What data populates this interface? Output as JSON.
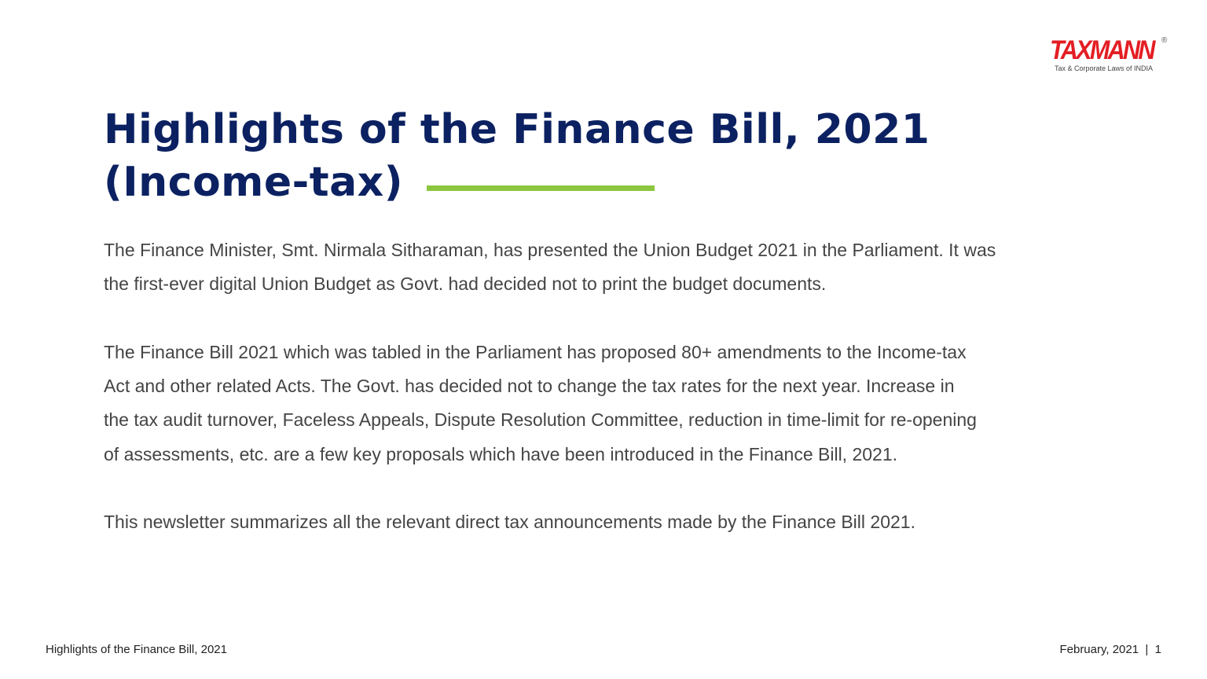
{
  "logo": {
    "word": "TAXMANN",
    "registered": "®",
    "tagline": "Tax & Corporate Laws of INDIA"
  },
  "title": {
    "line1": "Highlights of the Finance Bill, 2021",
    "line2": "(Income-tax)"
  },
  "colors": {
    "title": "#0b2161",
    "accent": "#8cc63f",
    "brand": "#e31e24",
    "body": "#444444"
  },
  "paragraphs": [
    [
      "The Finance Minister, Smt. Nirmala Sitharaman, has presented the Union Budget 2021 in the Parliament. It was",
      "the first-ever digital Union Budget as Govt. had decided not to print the budget documents."
    ],
    [
      "The Finance Bill 2021 which was tabled in the Parliament has proposed 80+ amendments to the Income-tax",
      "Act and other related Acts. The Govt. has decided not to change the tax rates for the next year. Increase in",
      "the tax audit turnover, Faceless Appeals, Dispute Resolution Committee, reduction in time-limit for re-opening",
      "of assessments, etc. are a few key proposals which have been introduced in the Finance Bill, 2021."
    ],
    [
      "This newsletter summarizes all the relevant direct tax announcements made by the Finance Bill 2021."
    ]
  ],
  "footer": {
    "left": "Highlights of the Finance Bill, 2021",
    "right": "February, 2021  |  1"
  }
}
